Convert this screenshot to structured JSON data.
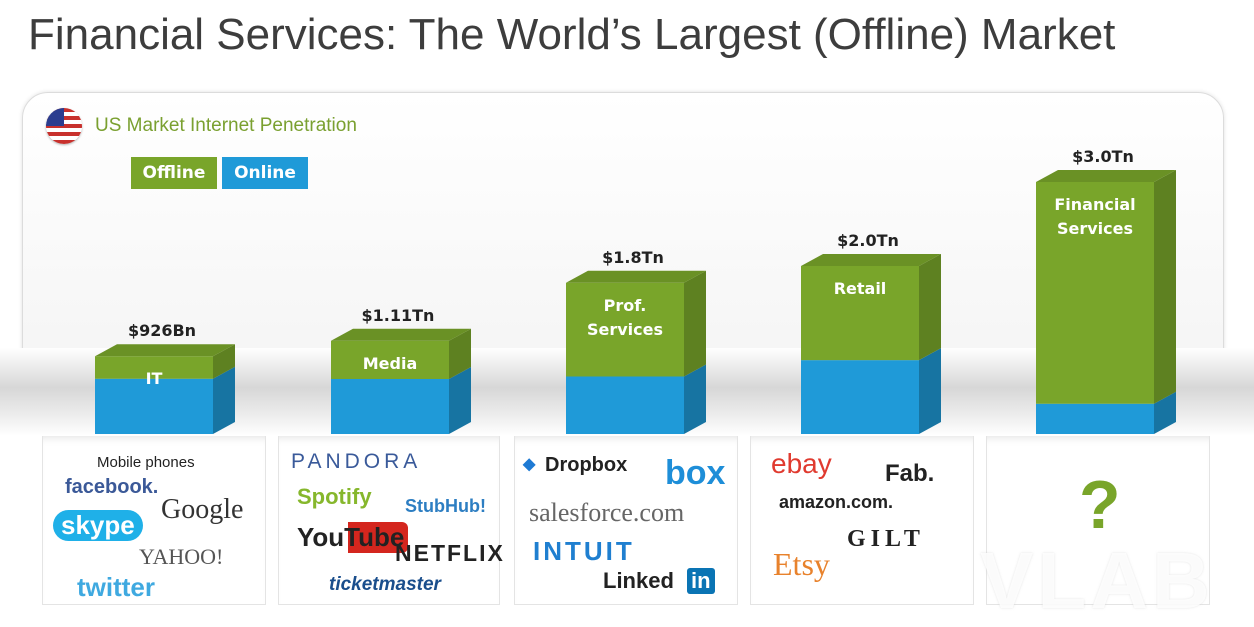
{
  "title": "Financial Services: The World’s Largest (Offline) Market",
  "subtitle": "US Market Internet Penetration",
  "legend": {
    "offline": "Offline",
    "online": "Online"
  },
  "colors": {
    "offline": "#79a52a",
    "online": "#1f9ad8",
    "title": "#3d3d3d",
    "subtitle": "#7aa030"
  },
  "chart_data": {
    "type": "bar",
    "stacked": true,
    "categories": [
      "IT",
      "Media",
      "Prof.\nServices",
      "Retail",
      "Financial\nServices"
    ],
    "totals": [
      0.926,
      1.11,
      1.8,
      2.0,
      3.0
    ],
    "total_labels": [
      "$926Bn",
      "$1.11Tn",
      "$1.8Tn",
      "$2.0Tn",
      "$3.0Tn"
    ],
    "online_share": [
      0.71,
      0.59,
      0.38,
      0.44,
      0.12
    ],
    "series": [
      {
        "name": "Offline"
      },
      {
        "name": "Online"
      }
    ],
    "legend_position": "top-left"
  },
  "logos": {
    "IT": [
      "Mobile phones",
      "facebook.",
      "Google",
      "skype",
      "YAHOO!",
      "twitter"
    ],
    "Media": [
      "PANDORA",
      "Spotify",
      "StubHub!",
      "YouTube",
      "NETFLIX",
      "ticketmaster"
    ],
    "Prof. Services": [
      "Dropbox",
      "box",
      "salesforce.com",
      "INTUIT",
      "Linked",
      "in"
    ],
    "Retail": [
      "ebay",
      "Fab.",
      "amazon.com.",
      "GILT",
      "Etsy"
    ],
    "Financial Services": [
      "?"
    ]
  },
  "watermark": "VLAB"
}
